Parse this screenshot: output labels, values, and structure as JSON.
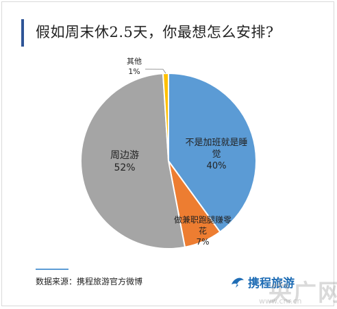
{
  "chart_data": {
    "type": "pie",
    "title": "假如周末休2.5天，你最想怎么安排?",
    "slices": [
      {
        "label": "不是加班就是睡觉",
        "lines": [
          "不是加班就是睡",
          "觉"
        ],
        "value": 40,
        "value_label": "40%",
        "color": "#5b9bd5"
      },
      {
        "label": "做兼职跑腿赚零花",
        "lines": [
          "做兼职跑腿赚零",
          "花"
        ],
        "value": 7,
        "value_label": "7%",
        "color": "#ed7d31"
      },
      {
        "label": "周边游",
        "lines": [
          "周边游"
        ],
        "value": 52,
        "value_label": "52%",
        "color": "#a5a5a5"
      },
      {
        "label": "其他",
        "lines": [
          "其他"
        ],
        "value": 1,
        "value_label": "1%",
        "color": "#ffc000"
      }
    ]
  },
  "footer": {
    "source": "数据来源：携程旅游官方微博",
    "brand": "携程旅游"
  },
  "watermark": {
    "text": "央广网",
    "url": "www.cnr.cn"
  },
  "colors": {
    "accent_bar": "#2f5597",
    "footer_line": "#5b9bd5",
    "brand": "#1f6db5"
  }
}
